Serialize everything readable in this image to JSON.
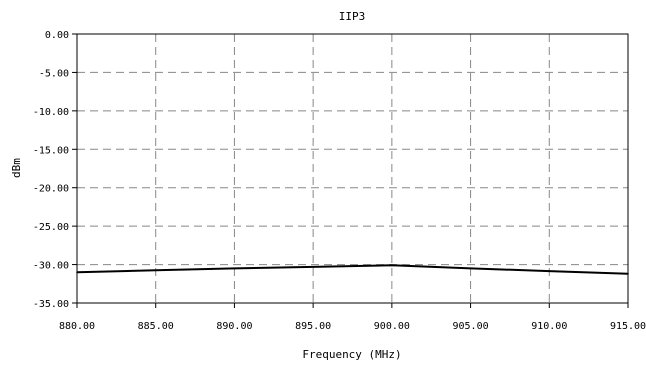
{
  "chart_data": {
    "type": "line",
    "title": "IIP3",
    "xlabel": "Frequency (MHz)",
    "ylabel": "dBm",
    "xlim": [
      880,
      915
    ],
    "ylim": [
      -35,
      0
    ],
    "x_ticks": [
      "880.00",
      "885.00",
      "890.00",
      "895.00",
      "900.00",
      "905.00",
      "910.00",
      "915.00"
    ],
    "y_ticks": [
      "0.00",
      "-5.00",
      "-10.00",
      "-15.00",
      "-20.00",
      "-25.00",
      "-30.00",
      "-35.00"
    ],
    "grid": true,
    "series": [
      {
        "x": [
          880,
          885,
          890,
          895,
          900,
          905,
          910,
          915
        ],
        "y": [
          -31.0,
          -30.75,
          -30.5,
          -30.3,
          -30.1,
          -30.5,
          -30.85,
          -31.2
        ],
        "color": "#000000"
      }
    ]
  }
}
